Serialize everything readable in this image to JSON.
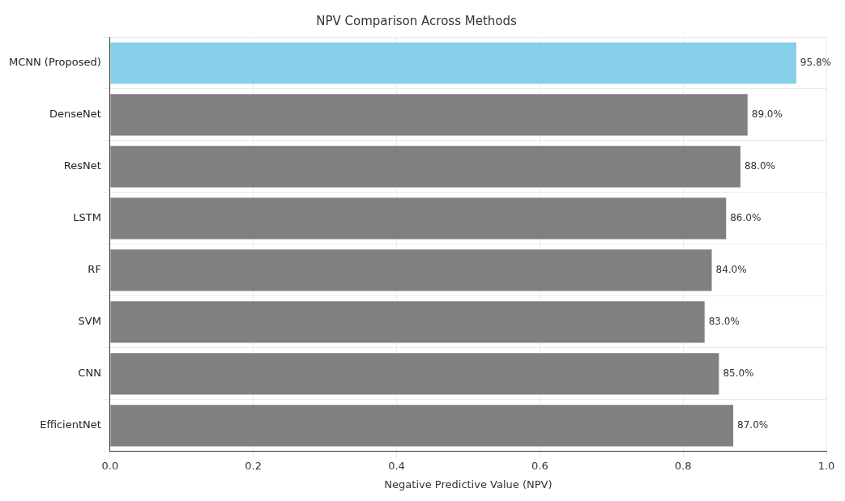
{
  "chart_data": {
    "type": "bar",
    "orientation": "horizontal",
    "title": "NPV Comparison Across Methods",
    "xlabel": "Negative Predictive Value (NPV)",
    "categories": [
      "MCNN (Proposed)",
      "DenseNet",
      "ResNet",
      "LSTM",
      "RF",
      "SVM",
      "CNN",
      "EfficientNet"
    ],
    "values": [
      0.958,
      0.89,
      0.88,
      0.86,
      0.84,
      0.83,
      0.85,
      0.87
    ],
    "value_labels": [
      "95.8%",
      "89.0%",
      "88.0%",
      "86.0%",
      "84.0%",
      "83.0%",
      "85.0%",
      "87.0%"
    ],
    "colors": [
      "#87ceeb",
      "#808080",
      "#808080",
      "#808080",
      "#808080",
      "#808080",
      "#808080",
      "#808080"
    ],
    "xlim": [
      0,
      1
    ],
    "xticks": [
      "0.0",
      "0.2",
      "0.4",
      "0.6",
      "0.8",
      "1.0"
    ],
    "grid": true,
    "legend": false
  }
}
